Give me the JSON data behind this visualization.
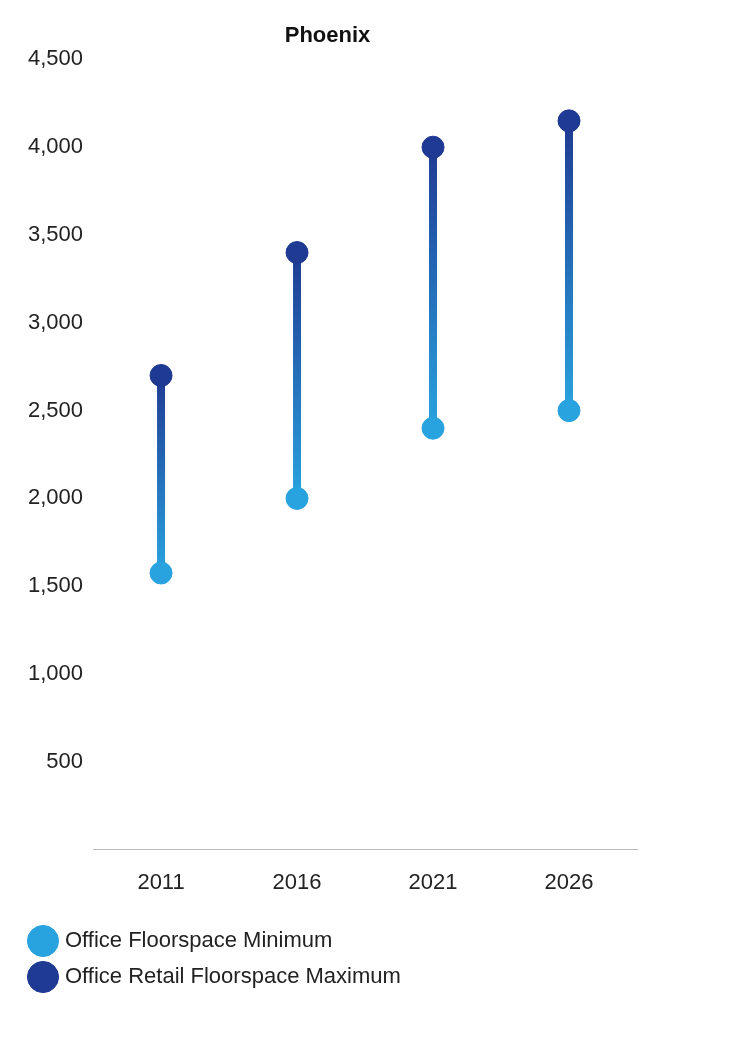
{
  "chart_data": {
    "type": "scatter",
    "title": "Phoenix",
    "categories": [
      "2011",
      "2016",
      "2021",
      "2026"
    ],
    "series": [
      {
        "name": "Office Floorspace Minimum",
        "color": "#29a3e0",
        "values": [
          1575,
          2000,
          2400,
          2500
        ]
      },
      {
        "name": "Office Retail Floorspace Maximum",
        "color": "#1f3a93",
        "values": [
          2700,
          3400,
          4000,
          4150
        ]
      }
    ],
    "ylim": [
      0,
      4500
    ],
    "yticks": [
      500,
      {
        "value": 1000,
        "label": "1,000"
      },
      {
        "value": 1500,
        "label": "1,500"
      },
      {
        "value": 2000,
        "label": "2,000"
      },
      {
        "value": 2500,
        "label": "2,500"
      },
      {
        "value": 3000,
        "label": "3,000"
      },
      {
        "value": 3500,
        "label": "3,500"
      },
      {
        "value": 4000,
        "label": "4,000"
      },
      {
        "value": 4500,
        "label": "4,500"
      }
    ],
    "grid": false,
    "legend": "bottom",
    "marker": "circle"
  }
}
